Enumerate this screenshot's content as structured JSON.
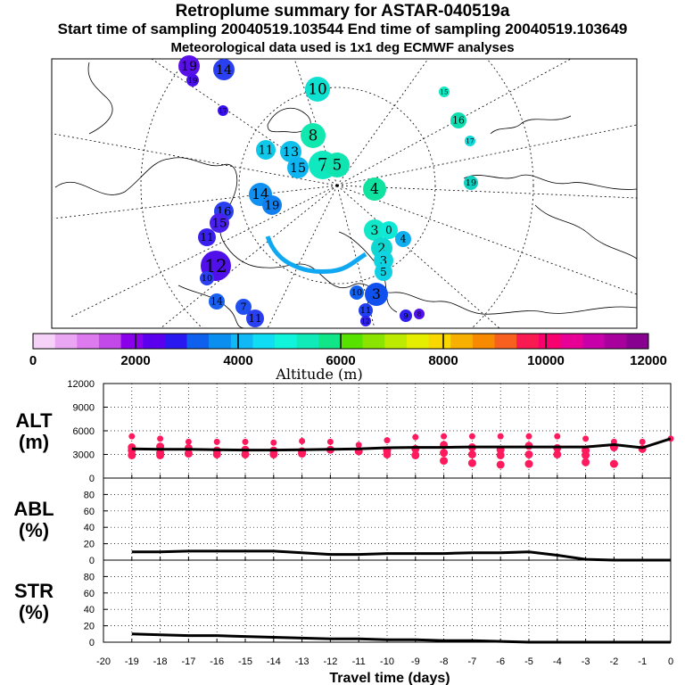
{
  "header": {
    "title": "Retroplume summary for ASTAR-040519a",
    "sampling": "Start time of sampling 20040519.103544      End time of sampling 20040519.103649",
    "met": "Meteorological data used is 1x1 deg ECMWF analyses"
  },
  "colorbar": {
    "label": "Altitude (m)",
    "ticks": [
      "0",
      "2000",
      "4000",
      "6000",
      "8000",
      "10000",
      "12000"
    ],
    "colors": [
      "#f6d2f8",
      "#eaa6f2",
      "#dd7aee",
      "#c34ae8",
      "#8a00ea",
      "#5a00ee",
      "#2a18f0",
      "#1060ee",
      "#0a8ef0",
      "#10b8f6",
      "#10dcf4",
      "#10f4dc",
      "#10eab8",
      "#10e688",
      "#58e200",
      "#8ae400",
      "#bcea00",
      "#e6ee00",
      "#f8d800",
      "#f8b000",
      "#f88a00",
      "#f86020",
      "#f81a50",
      "#f8006e",
      "#e80096",
      "#c800aa",
      "#a8009c",
      "#880090"
    ]
  },
  "chart_data": [
    {
      "type": "scatter",
      "panel": "ALT",
      "ylabel": "ALT\n(m)",
      "ylim": [
        0,
        12000
      ],
      "yticks": [
        "0",
        "3000",
        "6000",
        "9000",
        "12000"
      ],
      "line_x": [
        -19,
        -18,
        -17,
        -16,
        -15,
        -14,
        -13,
        -12,
        -11,
        -10,
        -9,
        -8,
        -7,
        -6,
        -5,
        -4,
        -3,
        -2,
        -1,
        0
      ],
      "line_values": [
        3700,
        3650,
        3650,
        3600,
        3550,
        3550,
        3600,
        3650,
        3700,
        3850,
        3900,
        3900,
        3950,
        3950,
        3950,
        3950,
        3950,
        4250,
        3850,
        5000
      ],
      "points": [
        {
          "x": -19,
          "ys": [
            5300,
            3900,
            3500,
            2900
          ]
        },
        {
          "x": -18,
          "ys": [
            5000,
            4000,
            3200,
            2900
          ]
        },
        {
          "x": -17,
          "ys": [
            4600,
            3800,
            3100
          ]
        },
        {
          "x": -16,
          "ys": [
            4600,
            3500,
            3000
          ]
        },
        {
          "x": -15,
          "ys": [
            4600,
            3600,
            3000
          ]
        },
        {
          "x": -14,
          "ys": [
            4500,
            3500,
            3000
          ]
        },
        {
          "x": -13,
          "ys": [
            4700,
            3400,
            3100
          ]
        },
        {
          "x": -12,
          "ys": [
            4600,
            3600
          ]
        },
        {
          "x": -11,
          "ys": [
            4200,
            3400
          ]
        },
        {
          "x": -10,
          "ys": [
            4800,
            3500,
            3000
          ]
        },
        {
          "x": -9,
          "ys": [
            5200,
            3700,
            2900
          ]
        },
        {
          "x": -8,
          "ys": [
            5300,
            4200,
            3200,
            2200
          ]
        },
        {
          "x": -7,
          "ys": [
            5300,
            3900,
            3000,
            1900
          ]
        },
        {
          "x": -6,
          "ys": [
            5300,
            3600,
            2900,
            1700
          ]
        },
        {
          "x": -5,
          "ys": [
            5300,
            4100,
            3000,
            1800
          ]
        },
        {
          "x": -4,
          "ys": [
            5300,
            3800,
            3000
          ]
        },
        {
          "x": -3,
          "ys": [
            5000,
            3500,
            2900,
            2000
          ]
        },
        {
          "x": -2,
          "ys": [
            4600,
            3900,
            1800
          ]
        },
        {
          "x": -1,
          "ys": [
            4600,
            3700
          ]
        },
        {
          "x": 0,
          "ys": [
            5000
          ]
        }
      ],
      "color": "#ff1a5e"
    },
    {
      "type": "line",
      "panel": "ABL",
      "ylabel": "ABL\n(%)",
      "ylim": [
        0,
        100
      ],
      "yticks": [
        "0",
        "20",
        "40",
        "60",
        "80"
      ],
      "x": [
        -19,
        -18,
        -17,
        -16,
        -15,
        -14,
        -13,
        -12,
        -11,
        -10,
        -9,
        -8,
        -7,
        -6,
        -5,
        -4,
        -3,
        -2,
        -1,
        0
      ],
      "values": [
        10,
        10,
        11,
        11,
        11,
        11,
        9,
        7,
        7,
        8,
        8,
        8,
        9,
        9,
        10,
        6,
        1,
        0,
        0,
        0
      ]
    },
    {
      "type": "line",
      "panel": "STR",
      "ylabel": "STR\n(%)",
      "ylim": [
        0,
        100
      ],
      "yticks": [
        "0",
        "20",
        "40",
        "60",
        "80"
      ],
      "xlabel": "Travel time (days)",
      "xticks": [
        "-20",
        "-19",
        "-18",
        "-17",
        "-16",
        "-15",
        "-14",
        "-13",
        "-12",
        "-11",
        "-10",
        "-9",
        "-8",
        "-7",
        "-6",
        "-5",
        "-4",
        "-3",
        "-2",
        "-1",
        "0"
      ],
      "x": [
        -19,
        -18,
        -17,
        -16,
        -15,
        -14,
        -13,
        -12,
        -11,
        -10,
        -9,
        -8,
        -7,
        -6,
        -5,
        -4,
        -3,
        -2,
        -1,
        0
      ],
      "values": [
        10,
        9,
        8,
        8,
        7,
        6,
        5,
        4,
        4,
        3,
        3,
        2,
        2,
        1,
        0,
        0,
        0,
        0,
        0,
        0
      ]
    }
  ],
  "map": {
    "labels": [
      {
        "t": "19",
        "c": "#5a10e8"
      },
      {
        "t": "14",
        "c": "#2a40f0"
      },
      {
        "t": "19",
        "c": "#4a10ea"
      },
      {
        "t": "17",
        "c": "#3a10ee"
      },
      {
        "t": "10",
        "c": "#10e0d0"
      },
      {
        "t": "15",
        "c": "#10e8c0"
      },
      {
        "t": "16",
        "c": "#10dcb0"
      },
      {
        "t": "17",
        "c": "#10d8d8"
      },
      {
        "t": "19",
        "c": "#10d0c0"
      },
      {
        "t": "8",
        "c": "#10e8b0"
      },
      {
        "t": "7",
        "c": "#10e8c0"
      },
      {
        "t": "5",
        "c": "#10e4b0"
      },
      {
        "t": "11",
        "c": "#10c8e8"
      },
      {
        "t": "13",
        "c": "#10c0ec"
      },
      {
        "t": "15",
        "c": "#10b4f0"
      },
      {
        "t": "4",
        "c": "#10e2a0"
      },
      {
        "t": "14",
        "c": "#1090f0"
      },
      {
        "t": "19",
        "c": "#1080f0"
      },
      {
        "t": "16",
        "c": "#2a40f0"
      },
      {
        "t": "15",
        "c": "#4a20ee"
      },
      {
        "t": "11",
        "c": "#3a20ee"
      },
      {
        "t": "12",
        "c": "#5010ea"
      },
      {
        "t": "10",
        "c": "#2a40f0"
      },
      {
        "t": "14",
        "c": "#1a60f0"
      },
      {
        "t": "7",
        "c": "#2050f0"
      },
      {
        "t": "11",
        "c": "#2a40f0"
      },
      {
        "t": "3",
        "c": "#10e8c8"
      },
      {
        "t": "0",
        "c": "#10e8d8"
      },
      {
        "t": "4",
        "c": "#10b0f0"
      },
      {
        "t": "2",
        "c": "#10d8d0"
      },
      {
        "t": "3",
        "c": "#10d4e0"
      },
      {
        "t": "5",
        "c": "#10d0e4"
      },
      {
        "t": "3",
        "c": "#1050ee"
      },
      {
        "t": "10",
        "c": "#1060f0"
      },
      {
        "t": "11",
        "c": "#2040f0"
      },
      {
        "t": "12",
        "c": "#3020ee"
      },
      {
        "t": "9",
        "c": "#3020ee"
      },
      {
        "t": "8",
        "c": "#5010ea"
      }
    ]
  }
}
